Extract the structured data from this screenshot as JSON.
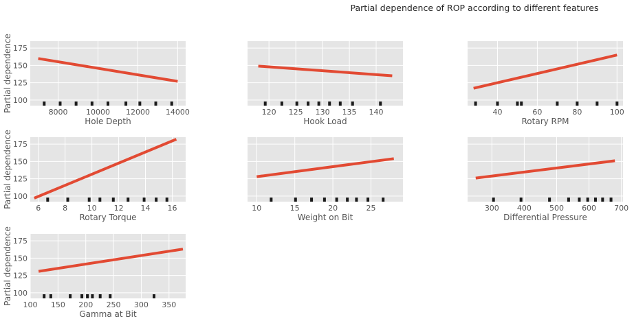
{
  "figure": {
    "title": "Partial dependence of ROP according to different features"
  },
  "colors": {
    "background": "#ffffff",
    "panel": "#e5e5e5",
    "grid": "#ffffff",
    "line": "#e24a33",
    "deciles": "#1a1a1a",
    "text": "#555555"
  },
  "chart_data": [
    {
      "type": "line",
      "xlabel": "Hole Depth",
      "ylabel": "Partial dependence",
      "xlim": [
        6600,
        14400
      ],
      "ylim": [
        92,
        185
      ],
      "xticks": [
        8000,
        10000,
        12000,
        14000
      ],
      "xtick_labels": [
        "8000",
        "10000",
        "12000",
        "14000"
      ],
      "yticks": [
        100,
        125,
        150,
        175
      ],
      "series": [
        {
          "x": [
            7000,
            14000
          ],
          "y": [
            160,
            127
          ]
        }
      ],
      "deciles": [
        7300,
        8100,
        8900,
        9700,
        10500,
        11400,
        12100,
        12900,
        13700
      ]
    },
    {
      "type": "line",
      "xlabel": "Hook Load",
      "ylabel": "",
      "xlim": [
        116,
        145
      ],
      "ylim": [
        92,
        185
      ],
      "xticks": [
        120,
        125,
        130,
        135,
        140
      ],
      "xtick_labels": [
        "120",
        "125",
        "130",
        "135",
        "140"
      ],
      "yticks": [
        100,
        125,
        150,
        175
      ],
      "series": [
        {
          "x": [
            118,
            143
          ],
          "y": [
            149,
            135
          ]
        }
      ],
      "deciles": [
        119.3,
        122.4,
        125.2,
        127.3,
        129.3,
        131.3,
        133.3,
        135.6,
        140.8
      ]
    },
    {
      "type": "line",
      "xlabel": "Rotary RPM",
      "ylabel": "",
      "xlim": [
        25,
        103
      ],
      "ylim": [
        92,
        185
      ],
      "xticks": [
        40,
        60,
        80,
        100
      ],
      "xtick_labels": [
        "40",
        "60",
        "80",
        "100"
      ],
      "yticks": [
        100,
        125,
        150,
        175
      ],
      "series": [
        {
          "x": [
            28,
            100
          ],
          "y": [
            117,
            165
          ]
        }
      ],
      "deciles": [
        29,
        40,
        50,
        52,
        70,
        80,
        90,
        100
      ]
    },
    {
      "type": "line",
      "xlabel": "Rotary Torque",
      "ylabel": "Partial dependence",
      "xlim": [
        5.4,
        17
      ],
      "ylim": [
        92,
        185
      ],
      "xticks": [
        6,
        8,
        10,
        12,
        14,
        16
      ],
      "xtick_labels": [
        "6",
        "8",
        "10",
        "12",
        "14",
        "16"
      ],
      "yticks": [
        100,
        125,
        150,
        175
      ],
      "series": [
        {
          "x": [
            5.7,
            16.3
          ],
          "y": [
            97,
            182
          ]
        }
      ],
      "deciles": [
        6.7,
        8.2,
        9.8,
        10.6,
        11.6,
        12.7,
        13.9,
        14.8,
        15.6
      ]
    },
    {
      "type": "line",
      "xlabel": "Weight on Bit",
      "ylabel": "",
      "xlim": [
        8.8,
        29.2
      ],
      "ylim": [
        92,
        185
      ],
      "xticks": [
        10,
        15,
        20,
        25
      ],
      "xtick_labels": [
        "10",
        "15",
        "20",
        "25"
      ],
      "yticks": [
        100,
        125,
        150,
        175
      ],
      "series": [
        {
          "x": [
            10,
            28
          ],
          "y": [
            128,
            154
          ]
        }
      ],
      "deciles": [
        11.9,
        15.1,
        17.2,
        18.9,
        20.5,
        21.9,
        23.1,
        24.6,
        26.6
      ]
    },
    {
      "type": "line",
      "xlabel": "Differential Pressure",
      "ylabel": "",
      "xlim": [
        225,
        705
      ],
      "ylim": [
        92,
        185
      ],
      "xticks": [
        300,
        400,
        500,
        600,
        700
      ],
      "xtick_labels": [
        "300",
        "400",
        "500",
        "600",
        "700"
      ],
      "yticks": [
        100,
        125,
        150,
        175
      ],
      "series": [
        {
          "x": [
            250,
            680
          ],
          "y": [
            126,
            151
          ]
        }
      ],
      "deciles": [
        305,
        390,
        478,
        537,
        570,
        596,
        620,
        642,
        668
      ]
    },
    {
      "type": "line",
      "xlabel": "Gamma at Bit",
      "ylabel": "Partial dependence",
      "xlim": [
        100,
        380
      ],
      "ylim": [
        92,
        185
      ],
      "xticks": [
        100,
        150,
        200,
        250,
        300,
        350
      ],
      "xtick_labels": [
        "100",
        "150",
        "200",
        "250",
        "300",
        "350"
      ],
      "yticks": [
        100,
        125,
        150,
        175
      ],
      "series": [
        {
          "x": [
            115,
            375
          ],
          "y": [
            131,
            163
          ]
        }
      ],
      "deciles": [
        125,
        137,
        172,
        193,
        203,
        212,
        226,
        244,
        323
      ]
    }
  ]
}
